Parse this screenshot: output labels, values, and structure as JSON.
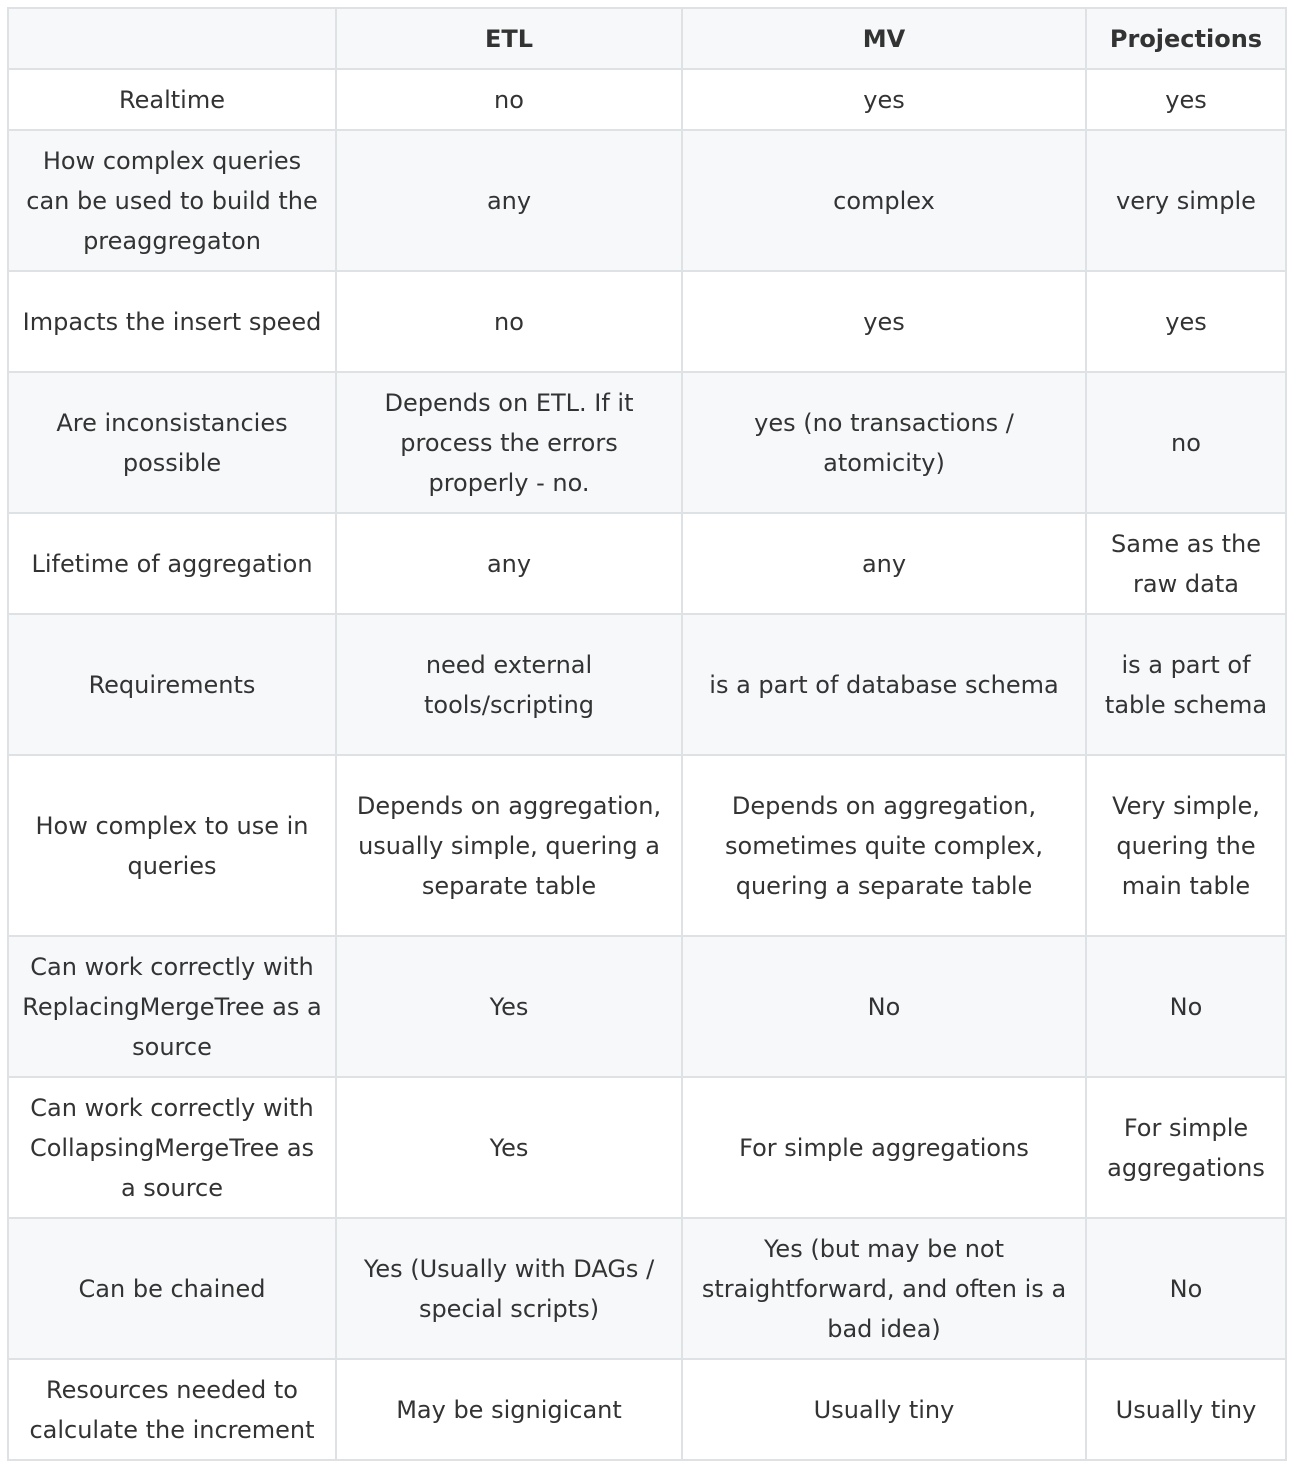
{
  "table": {
    "headers": [
      "",
      "ETL",
      "MV",
      "Projections"
    ],
    "rows": [
      [
        "Realtime",
        "no",
        "yes",
        "yes"
      ],
      [
        "How complex queries can be used to build the preaggregaton",
        "any",
        "complex",
        "very simple"
      ],
      [
        "Impacts the insert speed",
        "no",
        "yes",
        "yes"
      ],
      [
        "Are inconsistancies possible",
        "Depends on ETL. If it process the errors properly - no.",
        "yes (no transactions / atomicity)",
        "no"
      ],
      [
        "Lifetime of aggregation",
        "any",
        "any",
        "Same as the raw data"
      ],
      [
        "Requirements",
        "need external tools/scripting",
        "is a part of database schema",
        "is a part of table schema"
      ],
      [
        "How complex to use in queries",
        "Depends on aggregation, usually simple, quering a separate table",
        "Depends on aggregation, sometimes quite complex, quering a separate table",
        "Very simple, quering the main table"
      ],
      [
        "Can work correctly with ReplacingMergeTree as a source",
        "Yes",
        "No",
        "No"
      ],
      [
        "Can work correctly with CollapsingMergeTree as a source",
        "Yes",
        "For simple aggregations",
        "For simple aggregations"
      ],
      [
        "Can be chained",
        "Yes (Usually with DAGs / special scripts)",
        "Yes (but may be not straightforward, and often is a bad idea)",
        "No"
      ],
      [
        "Resources needed to calculate the increment",
        "May be signigicant",
        "Usually tiny",
        "Usually tiny"
      ]
    ]
  }
}
